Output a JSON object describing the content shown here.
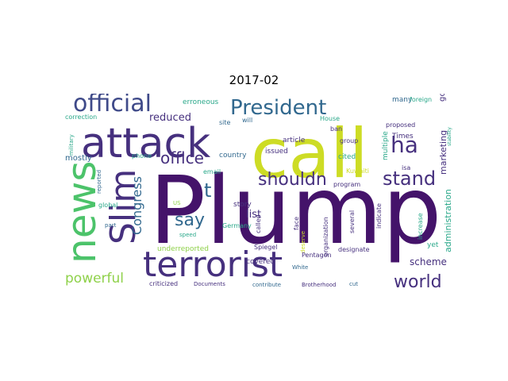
{
  "title": "2017-02",
  "palette": {
    "yellow": "#cddc25",
    "light_green": "#8fd14a",
    "green": "#4cc36a",
    "teal": "#2aa88a",
    "blue_teal": "#2a8c8c",
    "blue": "#31688e",
    "slate": "#3f4a89",
    "indigo": "#46307e",
    "purple": "#44136a"
  },
  "words": [
    {
      "text": "Plump",
      "color": "purple"
    },
    {
      "text": "call",
      "color": "yellow"
    },
    {
      "text": "attack",
      "color": "indigo"
    },
    {
      "text": "news",
      "color": "green"
    },
    {
      "text": "terrorist",
      "color": "indigo"
    },
    {
      "text": "Slim",
      "color": "indigo"
    },
    {
      "text": "official",
      "color": "slate"
    },
    {
      "text": "President",
      "color": "blue"
    },
    {
      "text": "ha",
      "color": "indigo"
    },
    {
      "text": "stand",
      "color": "indigo"
    },
    {
      "text": "shouldn",
      "color": "indigo"
    },
    {
      "text": "world",
      "color": "indigo"
    },
    {
      "text": "powerful",
      "color": "light_green"
    },
    {
      "text": "office",
      "color": "indigo"
    },
    {
      "text": "say",
      "color": "blue"
    },
    {
      "text": "t",
      "color": "blue"
    },
    {
      "text": "Congress",
      "color": "blue"
    },
    {
      "text": "administration",
      "color": "teal"
    },
    {
      "text": "marketing",
      "color": "indigo"
    },
    {
      "text": "reduced",
      "color": "indigo"
    },
    {
      "text": "scheme",
      "color": "indigo"
    },
    {
      "text": "list",
      "color": "indigo"
    },
    {
      "text": "erroneous",
      "color": "teal"
    },
    {
      "text": "correction",
      "color": "teal"
    },
    {
      "text": "mostly",
      "color": "blue"
    },
    {
      "text": "site",
      "color": "blue"
    },
    {
      "text": "will",
      "color": "blue"
    },
    {
      "text": "House",
      "color": "teal"
    },
    {
      "text": "ban",
      "color": "indigo"
    },
    {
      "text": "Times",
      "color": "indigo"
    },
    {
      "text": "proposed",
      "color": "indigo"
    },
    {
      "text": "many",
      "color": "blue"
    },
    {
      "text": "foreign",
      "color": "teal"
    },
    {
      "text": "go",
      "color": "indigo"
    },
    {
      "text": "stability",
      "color": "teal"
    },
    {
      "text": "country",
      "color": "blue"
    },
    {
      "text": "article",
      "color": "indigo"
    },
    {
      "text": "group",
      "color": "indigo"
    },
    {
      "text": "issued",
      "color": "indigo"
    },
    {
      "text": "multiple",
      "color": "teal"
    },
    {
      "text": "isa",
      "color": "indigo"
    },
    {
      "text": "cited",
      "color": "teal"
    },
    {
      "text": "email",
      "color": "teal"
    },
    {
      "text": "phone",
      "color": "teal"
    },
    {
      "text": "military",
      "color": "teal"
    },
    {
      "text": "reported",
      "color": "blue"
    },
    {
      "text": "story",
      "color": "indigo"
    },
    {
      "text": "called",
      "color": "indigo"
    },
    {
      "text": "face",
      "color": "indigo"
    },
    {
      "text": "Kuwaiti",
      "color": "yellow"
    },
    {
      "text": "program",
      "color": "indigo"
    },
    {
      "text": "organization",
      "color": "indigo"
    },
    {
      "text": "indicate",
      "color": "indigo"
    },
    {
      "text": "increase",
      "color": "teal"
    },
    {
      "text": "Germany",
      "color": "teal"
    },
    {
      "text": "global",
      "color": "teal"
    },
    {
      "text": "part",
      "color": "blue"
    },
    {
      "text": "speed",
      "color": "teal"
    },
    {
      "text": "Spiegel",
      "color": "indigo"
    },
    {
      "text": "deserve",
      "color": "yellow"
    },
    {
      "text": "several",
      "color": "indigo"
    },
    {
      "text": "yet",
      "color": "teal"
    },
    {
      "text": "underreported",
      "color": "light_green"
    },
    {
      "text": "covered",
      "color": "indigo"
    },
    {
      "text": "Pentagon",
      "color": "indigo"
    },
    {
      "text": "designate",
      "color": "indigo"
    },
    {
      "text": "criticized",
      "color": "indigo"
    },
    {
      "text": "Documents",
      "color": "indigo"
    },
    {
      "text": "White",
      "color": "blue"
    },
    {
      "text": "contribute",
      "color": "blue"
    },
    {
      "text": "Brotherhood",
      "color": "indigo"
    },
    {
      "text": "cut",
      "color": "blue"
    },
    {
      "text": "US",
      "color": "light_green"
    }
  ]
}
